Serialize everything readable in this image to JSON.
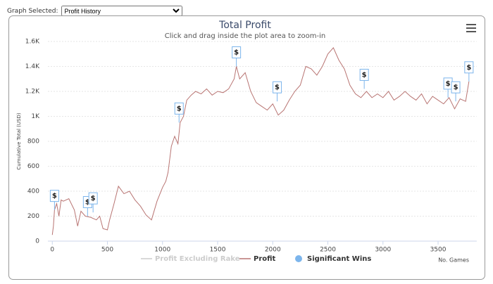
{
  "ui": {
    "select_label": "Graph Selected:",
    "select_value": "Profit History"
  },
  "chart_data": {
    "type": "line",
    "title": "Total Profit",
    "subtitle": "Click and drag inside the plot area to zoom-in",
    "y_label": "Cumulative Total (USD)",
    "x_label": "No. Games",
    "xlim": [
      -40,
      3850
    ],
    "xticks": [
      0,
      500,
      1000,
      1500,
      2000,
      2500,
      3000,
      3500
    ],
    "ylim": [
      0,
      1600
    ],
    "yticks": [
      0,
      200,
      400,
      600,
      800,
      {
        "value": 1000,
        "label": "1K"
      },
      {
        "value": 1200,
        "label": "1.2K"
      },
      {
        "value": 1400,
        "label": "1.4K"
      },
      {
        "value": 1600,
        "label": "1.6K"
      }
    ],
    "grid": true,
    "legend": "bottom",
    "series": [
      {
        "name": "Profit Excluding Rake",
        "color": "#cccccc",
        "hidden": true
      },
      {
        "name": "Profit",
        "color": "#b87472",
        "x": [
          0,
          10,
          20,
          40,
          60,
          80,
          100,
          150,
          200,
          230,
          260,
          300,
          350,
          400,
          430,
          460,
          500,
          520,
          560,
          600,
          650,
          700,
          750,
          800,
          850,
          900,
          950,
          1000,
          1030,
          1050,
          1080,
          1110,
          1140,
          1160,
          1190,
          1220,
          1260,
          1300,
          1350,
          1400,
          1450,
          1500,
          1550,
          1600,
          1650,
          1670,
          1700,
          1750,
          1800,
          1850,
          1900,
          1950,
          2000,
          2050,
          2100,
          2150,
          2200,
          2250,
          2300,
          2350,
          2400,
          2450,
          2500,
          2550,
          2600,
          2650,
          2700,
          2750,
          2800,
          2850,
          2900,
          2950,
          3000,
          3050,
          3100,
          3150,
          3200,
          3250,
          3300,
          3350,
          3400,
          3450,
          3500,
          3550,
          3600,
          3650,
          3700,
          3750,
          3780
        ],
        "values": [
          50,
          120,
          250,
          300,
          200,
          330,
          320,
          340,
          250,
          120,
          240,
          200,
          190,
          170,
          200,
          100,
          90,
          170,
          300,
          440,
          380,
          400,
          330,
          280,
          210,
          170,
          320,
          430,
          480,
          550,
          760,
          840,
          780,
          950,
          1000,
          1130,
          1170,
          1200,
          1180,
          1220,
          1170,
          1200,
          1190,
          1220,
          1300,
          1400,
          1300,
          1350,
          1200,
          1110,
          1080,
          1050,
          1100,
          1010,
          1050,
          1130,
          1200,
          1250,
          1400,
          1380,
          1330,
          1400,
          1500,
          1550,
          1450,
          1380,
          1250,
          1180,
          1150,
          1200,
          1150,
          1180,
          1150,
          1200,
          1130,
          1160,
          1200,
          1160,
          1130,
          1180,
          1100,
          1160,
          1130,
          1100,
          1150,
          1060,
          1140,
          1120,
          1280
        ]
      },
      {
        "name": "Significant Wins",
        "color": "#7cb5ec",
        "flag_label": "$",
        "x": [
          20,
          320,
          370,
          1150,
          1670,
          2040,
          2830,
          3590,
          3660,
          3780
        ],
        "values": [
          250,
          200,
          230,
          950,
          1400,
          1120,
          1220,
          1150,
          1120,
          1280
        ]
      }
    ]
  }
}
